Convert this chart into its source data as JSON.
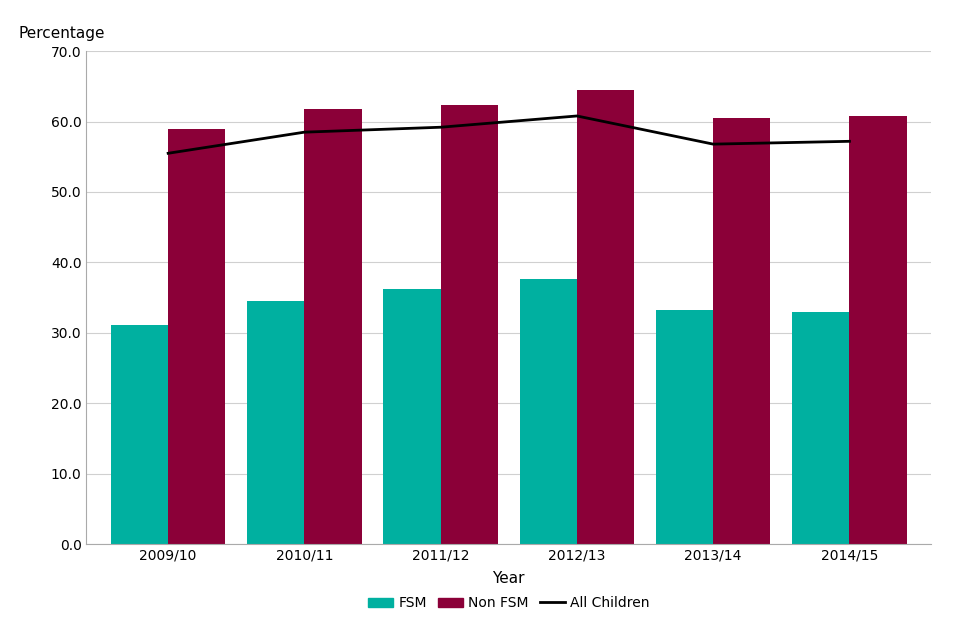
{
  "years": [
    "2009/10",
    "2010/11",
    "2011/12",
    "2012/13",
    "2013/14",
    "2014/15"
  ],
  "fsm_values": [
    31.1,
    34.5,
    36.2,
    37.7,
    33.3,
    33.0
  ],
  "non_fsm_values": [
    59.0,
    61.8,
    62.4,
    64.5,
    60.5,
    60.8
  ],
  "all_children_values": [
    55.5,
    58.5,
    59.2,
    60.8,
    56.8,
    57.2
  ],
  "fsm_color": "#00B0A0",
  "non_fsm_color": "#8B0038",
  "all_children_color": "#000000",
  "ylabel": "Percentage",
  "xlabel": "Year",
  "ylim": [
    0,
    70
  ],
  "yticks": [
    0.0,
    10.0,
    20.0,
    30.0,
    40.0,
    50.0,
    60.0,
    70.0
  ],
  "bar_width": 0.42,
  "legend_labels": [
    "FSM",
    "Non FSM",
    "All Children"
  ],
  "background_color": "#ffffff",
  "grid_color": "#d0d0d0"
}
